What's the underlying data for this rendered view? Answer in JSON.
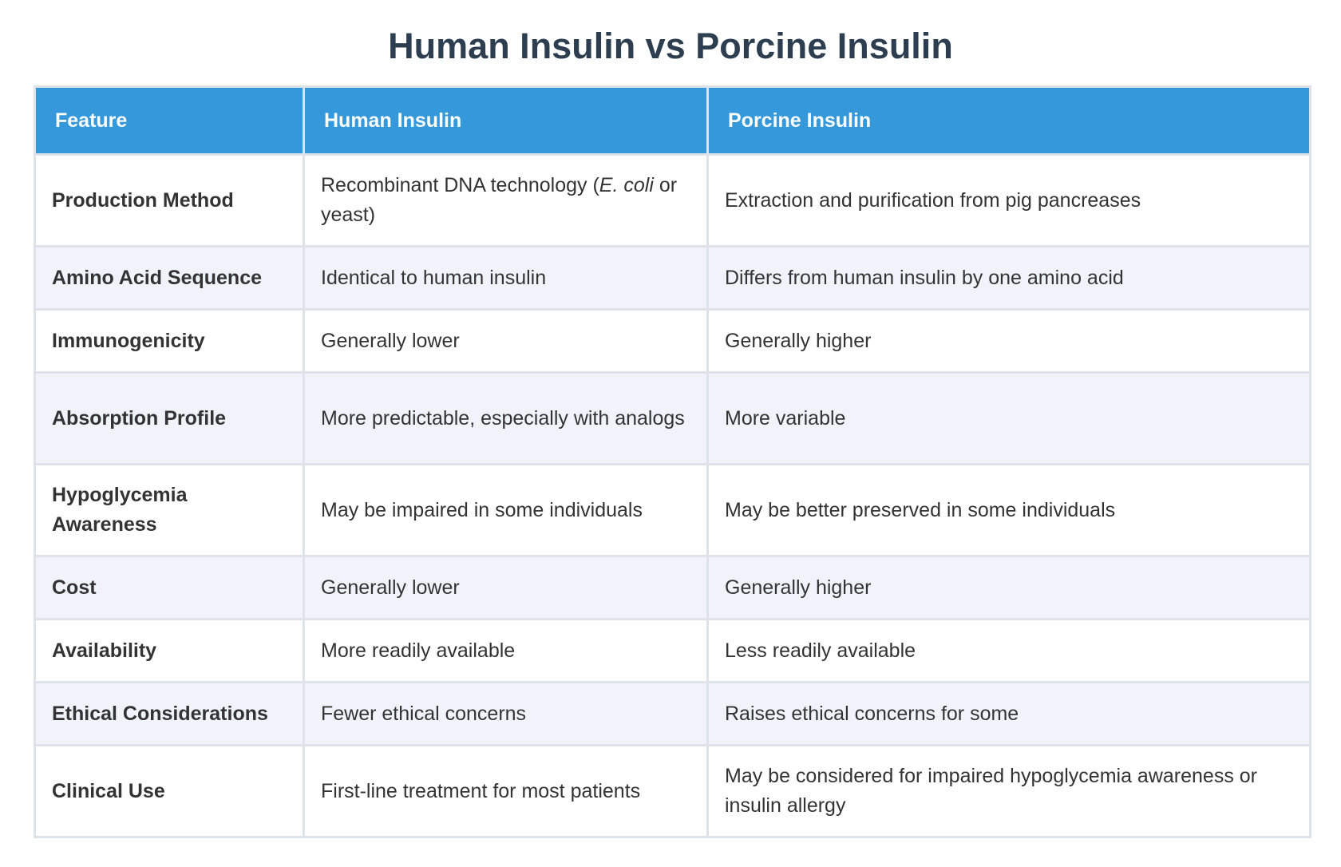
{
  "title": "Human Insulin vs Porcine Insulin",
  "table": {
    "headers": [
      "Feature",
      "Human Insulin",
      "Porcine Insulin"
    ],
    "rows": [
      {
        "feature": "Production Method",
        "human_prefix": "Recombinant DNA technology (",
        "human_italic": "E. coli",
        "human_suffix": " or yeast)",
        "porcine": "Extraction and purification from pig pancreases"
      },
      {
        "feature": "Amino Acid Sequence",
        "human": "Identical to human insulin",
        "porcine": "Differs from human insulin by one amino acid"
      },
      {
        "feature": "Immunogenicity",
        "human": "Generally lower",
        "porcine": "Generally higher"
      },
      {
        "feature": "Absorption Profile",
        "human": "More predictable, especially with analogs",
        "porcine": "More variable"
      },
      {
        "feature": "Hypoglycemia Awareness",
        "human": "May be impaired in some individuals",
        "porcine": "May be better preserved in some individuals"
      },
      {
        "feature": "Cost",
        "human": "Generally lower",
        "porcine": "Generally higher"
      },
      {
        "feature": "Availability",
        "human": "More readily available",
        "porcine": "Less readily available"
      },
      {
        "feature": "Ethical Considerations",
        "human": "Fewer ethical concerns",
        "porcine": "Raises ethical concerns for some"
      },
      {
        "feature": "Clinical Use",
        "human": "First-line treatment for most patients",
        "porcine": "May be considered for impaired hypoglycemia awareness or insulin allergy"
      }
    ]
  },
  "colors": {
    "header_bg": "#3498db",
    "header_text": "#ffffff",
    "title_text": "#2c3e50",
    "zebra_row": "#f0f4fa",
    "border": "#dde3e8"
  }
}
